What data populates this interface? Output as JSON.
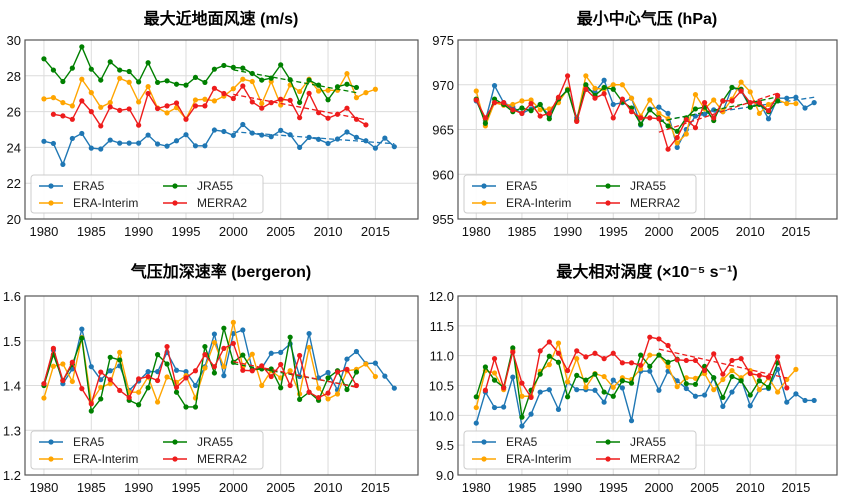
{
  "chart_data": [
    {
      "type": "line",
      "title": "最大近地面风速 (m/s)",
      "xlim": [
        1978,
        2019.5
      ],
      "ylim": [
        20,
        30
      ],
      "xticks": [
        1980,
        1985,
        1990,
        1995,
        2000,
        2005,
        2010,
        2015
      ],
      "yticks": [
        20,
        22,
        24,
        26,
        28,
        30
      ],
      "grid": true,
      "legend_position": "bottom-left",
      "series": [
        {
          "name": "ERA5",
          "color": "#1f77b4",
          "start_year": 1980,
          "trend_from": 2000,
          "values": [
            24.34,
            24.22,
            23.05,
            24.5,
            24.78,
            23.96,
            23.91,
            24.41,
            24.24,
            24.24,
            24.24,
            24.69,
            24.19,
            24.07,
            24.37,
            24.71,
            24.09,
            24.09,
            24.97,
            24.89,
            24.67,
            25.28,
            24.8,
            24.69,
            24.6,
            24.95,
            24.71,
            24.0,
            24.56,
            24.45,
            24.22,
            24.47,
            24.86,
            24.56,
            24.37,
            23.96,
            24.52,
            24.04
          ]
        },
        {
          "name": "ERA-Interim",
          "color": "#ffa500",
          "start_year": 1980,
          "trend_from": null,
          "values": [
            26.71,
            26.78,
            26.5,
            26.32,
            27.81,
            27.06,
            26.24,
            26.5,
            27.86,
            27.64,
            26.54,
            27.4,
            26.2,
            25.93,
            26.22,
            25.59,
            26.65,
            26.69,
            26.6,
            26.86,
            27.28,
            27.81,
            27.68,
            26.45,
            27.68,
            26.37,
            27.49,
            27.12,
            27.81,
            27.15,
            27.19,
            27.19,
            28.12,
            26.78,
            27.06,
            27.25
          ]
        },
        {
          "name": "JRA55",
          "color": "#008000",
          "start_year": 1980,
          "trend_from": 2000,
          "values": [
            28.95,
            28.32,
            27.68,
            28.43,
            29.62,
            28.37,
            27.76,
            28.78,
            28.32,
            28.24,
            27.66,
            28.73,
            27.63,
            27.72,
            27.53,
            27.48,
            27.91,
            27.63,
            28.37,
            28.58,
            28.47,
            28.43,
            28.13,
            27.76,
            27.87,
            28.61,
            27.78,
            26.51,
            27.76,
            27.48,
            26.66,
            27.39,
            27.53,
            27.35
          ]
        },
        {
          "name": "MERRA2",
          "color": "#ee1c1c",
          "start_year": 1981,
          "trend_from": 2000,
          "values": [
            25.85,
            25.76,
            25.57,
            26.6,
            26.0,
            25.2,
            26.26,
            26.07,
            26.15,
            25.24,
            27.01,
            26.17,
            26.32,
            26.48,
            25.57,
            26.32,
            26.32,
            27.3,
            27.01,
            26.73,
            27.43,
            26.54,
            26.19,
            26.5,
            26.69,
            26.63,
            25.66,
            27.02,
            25.94,
            25.63,
            25.85,
            26.19,
            25.57,
            25.26
          ]
        }
      ]
    },
    {
      "type": "line",
      "title": "最小中心气压 (hPa)",
      "xlim": [
        1978,
        2019.5
      ],
      "ylim": [
        955,
        975
      ],
      "xticks": [
        1980,
        1985,
        1990,
        1995,
        2000,
        2005,
        2010,
        2015
      ],
      "yticks": [
        955,
        960,
        965,
        970,
        975
      ],
      "grid": true,
      "legend_position": "bottom-left",
      "series": [
        {
          "name": "ERA5",
          "color": "#1f77b4",
          "start_year": 1980,
          "trend_from": 2000,
          "values": [
            968.2,
            966.0,
            969.9,
            968.0,
            967.5,
            966.8,
            967.3,
            967.8,
            966.5,
            968.3,
            969.5,
            966.3,
            969.5,
            969.2,
            970.5,
            967.8,
            968.0,
            968.5,
            965.5,
            967.3,
            967.5,
            966.8,
            963.0,
            965.0,
            966.5,
            966.7,
            967.2,
            967.0,
            969.7,
            969.3,
            967.5,
            968.0,
            966.2,
            968.5,
            968.5,
            968.6,
            967.4,
            968.0
          ]
        },
        {
          "name": "ERA-Interim",
          "color": "#ffa500",
          "start_year": 1980,
          "trend_from": null,
          "values": [
            969.3,
            965.4,
            968.0,
            967.7,
            967.8,
            968.2,
            968.3,
            967.2,
            967.3,
            968.0,
            969.5,
            966.0,
            971.0,
            969.6,
            969.5,
            970.0,
            970.0,
            968.5,
            966.5,
            968.3,
            966.8,
            966.2,
            963.5,
            964.5,
            968.9,
            967.3,
            968.3,
            967.0,
            968.4,
            970.3,
            969.2,
            966.8,
            967.8,
            968.3,
            967.9,
            967.9
          ]
        },
        {
          "name": "JRA55",
          "color": "#008000",
          "start_year": 1980,
          "trend_from": 2000,
          "values": [
            968.4,
            965.7,
            968.4,
            967.8,
            967.0,
            967.4,
            967.1,
            967.8,
            966.2,
            968.4,
            969.4,
            966.0,
            970.0,
            968.8,
            969.7,
            969.5,
            968.1,
            967.4,
            965.6,
            967.2,
            966.3,
            965.4,
            964.8,
            966.3,
            967.3,
            967.5,
            966.0,
            968.2,
            969.7,
            969.5,
            967.5,
            967.8,
            967.0,
            968.2
          ]
        },
        {
          "name": "MERRA2",
          "color": "#ee1c1c",
          "start_year": 1980,
          "trend_from": 2000,
          "values": [
            968.3,
            966.3,
            968.0,
            968.0,
            967.2,
            966.8,
            967.9,
            966.5,
            966.8,
            968.6,
            971.0,
            965.9,
            969.5,
            968.5,
            969.0,
            966.3,
            968.4,
            967.0,
            966.3,
            966.3,
            966.2,
            962.8,
            964.1,
            966.1,
            965.2,
            968.0,
            966.3,
            968.2,
            968.2,
            969.3,
            968.0,
            968.0,
            967.1,
            968.8
          ]
        }
      ]
    },
    {
      "type": "line",
      "title": "气压加深速率 (bergeron)",
      "xlim": [
        1978,
        2019.5
      ],
      "ylim": [
        1.2,
        1.6
      ],
      "xticks": [
        1980,
        1985,
        1990,
        1995,
        2000,
        2005,
        2010,
        2015
      ],
      "yticks": [
        1.2,
        1.3,
        1.4,
        1.5,
        1.6
      ],
      "grid": true,
      "legend_position": "bottom-left",
      "series": [
        {
          "name": "ERA5",
          "color": "#1f77b4",
          "start_year": 1980,
          "trend_from": null,
          "values": [
            1.404,
            1.479,
            1.404,
            1.437,
            1.526,
            1.442,
            1.413,
            1.433,
            1.444,
            1.389,
            1.41,
            1.431,
            1.431,
            1.474,
            1.434,
            1.431,
            1.4,
            1.442,
            1.515,
            1.422,
            1.516,
            1.524,
            1.436,
            1.439,
            1.472,
            1.474,
            1.493,
            1.42,
            1.516,
            1.417,
            1.429,
            1.39,
            1.459,
            1.476,
            1.449,
            1.45,
            1.421,
            1.394
          ]
        },
        {
          "name": "ERA-Interim",
          "color": "#ffa500",
          "start_year": 1980,
          "trend_from": null,
          "values": [
            1.372,
            1.443,
            1.448,
            1.409,
            1.507,
            1.363,
            1.396,
            1.404,
            1.474,
            1.385,
            1.385,
            1.419,
            1.363,
            1.419,
            1.407,
            1.422,
            1.372,
            1.439,
            1.496,
            1.442,
            1.541,
            1.441,
            1.47,
            1.4,
            1.433,
            1.417,
            1.433,
            1.381,
            1.485,
            1.394,
            1.37,
            1.381,
            1.433,
            1.436,
            1.448,
            1.42
          ]
        },
        {
          "name": "JRA55",
          "color": "#008000",
          "start_year": 1980,
          "trend_from": 2000,
          "values": [
            1.4,
            1.469,
            1.411,
            1.447,
            1.506,
            1.343,
            1.37,
            1.463,
            1.457,
            1.367,
            1.357,
            1.395,
            1.469,
            1.448,
            1.385,
            1.352,
            1.352,
            1.487,
            1.428,
            1.528,
            1.452,
            1.468,
            1.435,
            1.437,
            1.437,
            1.395,
            1.508,
            1.369,
            1.385,
            1.367,
            1.417,
            1.433,
            1.391,
            1.43
          ]
        },
        {
          "name": "MERRA2",
          "color": "#ee1c1c",
          "start_year": 1980,
          "trend_from": 2000,
          "values": [
            1.404,
            1.483,
            1.411,
            1.452,
            1.393,
            1.359,
            1.43,
            1.413,
            1.389,
            1.373,
            1.415,
            1.42,
            1.411,
            1.487,
            1.396,
            1.417,
            1.433,
            1.469,
            1.442,
            1.483,
            1.494,
            1.434,
            1.433,
            1.444,
            1.42,
            1.447,
            1.4,
            1.467,
            1.385,
            1.373,
            1.383,
            1.43,
            1.436,
            1.4
          ]
        }
      ]
    },
    {
      "type": "line",
      "title": "最大相对涡度 (×10⁻⁵ s⁻¹)",
      "xlim": [
        1978,
        2019.5
      ],
      "ylim": [
        9.0,
        12.0
      ],
      "xticks": [
        1980,
        1985,
        1990,
        1995,
        2000,
        2005,
        2010,
        2015
      ],
      "yticks": [
        9.0,
        9.5,
        10.0,
        10.5,
        11.0,
        11.5,
        12.0
      ],
      "grid": true,
      "legend_position": "bottom-left",
      "series": [
        {
          "name": "ERA5",
          "color": "#1f77b4",
          "start_year": 1980,
          "trend_from": null,
          "values": [
            9.87,
            10.39,
            10.13,
            10.14,
            10.64,
            9.82,
            10.02,
            10.39,
            10.43,
            10.1,
            10.56,
            10.43,
            10.43,
            10.42,
            10.22,
            10.59,
            10.46,
            9.91,
            10.74,
            10.74,
            10.42,
            10.74,
            10.58,
            10.45,
            10.32,
            10.34,
            10.63,
            10.15,
            10.39,
            10.61,
            10.16,
            10.43,
            10.45,
            10.77,
            10.22,
            10.36,
            10.25,
            10.25
          ]
        },
        {
          "name": "ERA-Interim",
          "color": "#ffa500",
          "start_year": 1980,
          "trend_from": null,
          "values": [
            10.13,
            10.75,
            10.71,
            10.43,
            11.09,
            10.32,
            10.32,
            10.74,
            10.85,
            11.21,
            10.56,
            10.95,
            10.47,
            10.7,
            10.65,
            10.47,
            10.63,
            10.6,
            10.78,
            11.01,
            11.01,
            10.82,
            10.48,
            10.63,
            10.62,
            10.7,
            10.43,
            10.6,
            10.75,
            10.63,
            10.75,
            10.43,
            10.63,
            10.39,
            10.6,
            10.77
          ]
        },
        {
          "name": "JRA55",
          "color": "#008000",
          "start_year": 1980,
          "trend_from": null,
          "values": [
            10.31,
            10.81,
            10.59,
            10.47,
            11.13,
            9.97,
            10.42,
            10.69,
            10.99,
            10.89,
            10.31,
            10.67,
            10.59,
            10.69,
            10.39,
            10.32,
            10.58,
            10.54,
            11.01,
            10.82,
            11.01,
            10.89,
            10.94,
            10.53,
            10.52,
            10.82,
            10.63,
            10.3,
            10.65,
            10.58,
            10.34,
            10.58,
            10.47,
            10.88
          ]
        },
        {
          "name": "MERRA2",
          "color": "#ee1c1c",
          "start_year": 1981,
          "trend_from": 2000,
          "values": [
            10.42,
            10.95,
            10.46,
            11.06,
            10.54,
            10.3,
            11.08,
            11.23,
            11.04,
            10.75,
            11.08,
            10.98,
            11.04,
            10.95,
            11.04,
            10.88,
            10.88,
            10.84,
            11.31,
            11.28,
            11.17,
            10.93,
            10.92,
            10.92,
            10.75,
            11.03,
            10.69,
            10.92,
            10.95,
            10.7,
            10.67,
            10.64,
            10.98,
            10.46
          ]
        }
      ]
    }
  ]
}
